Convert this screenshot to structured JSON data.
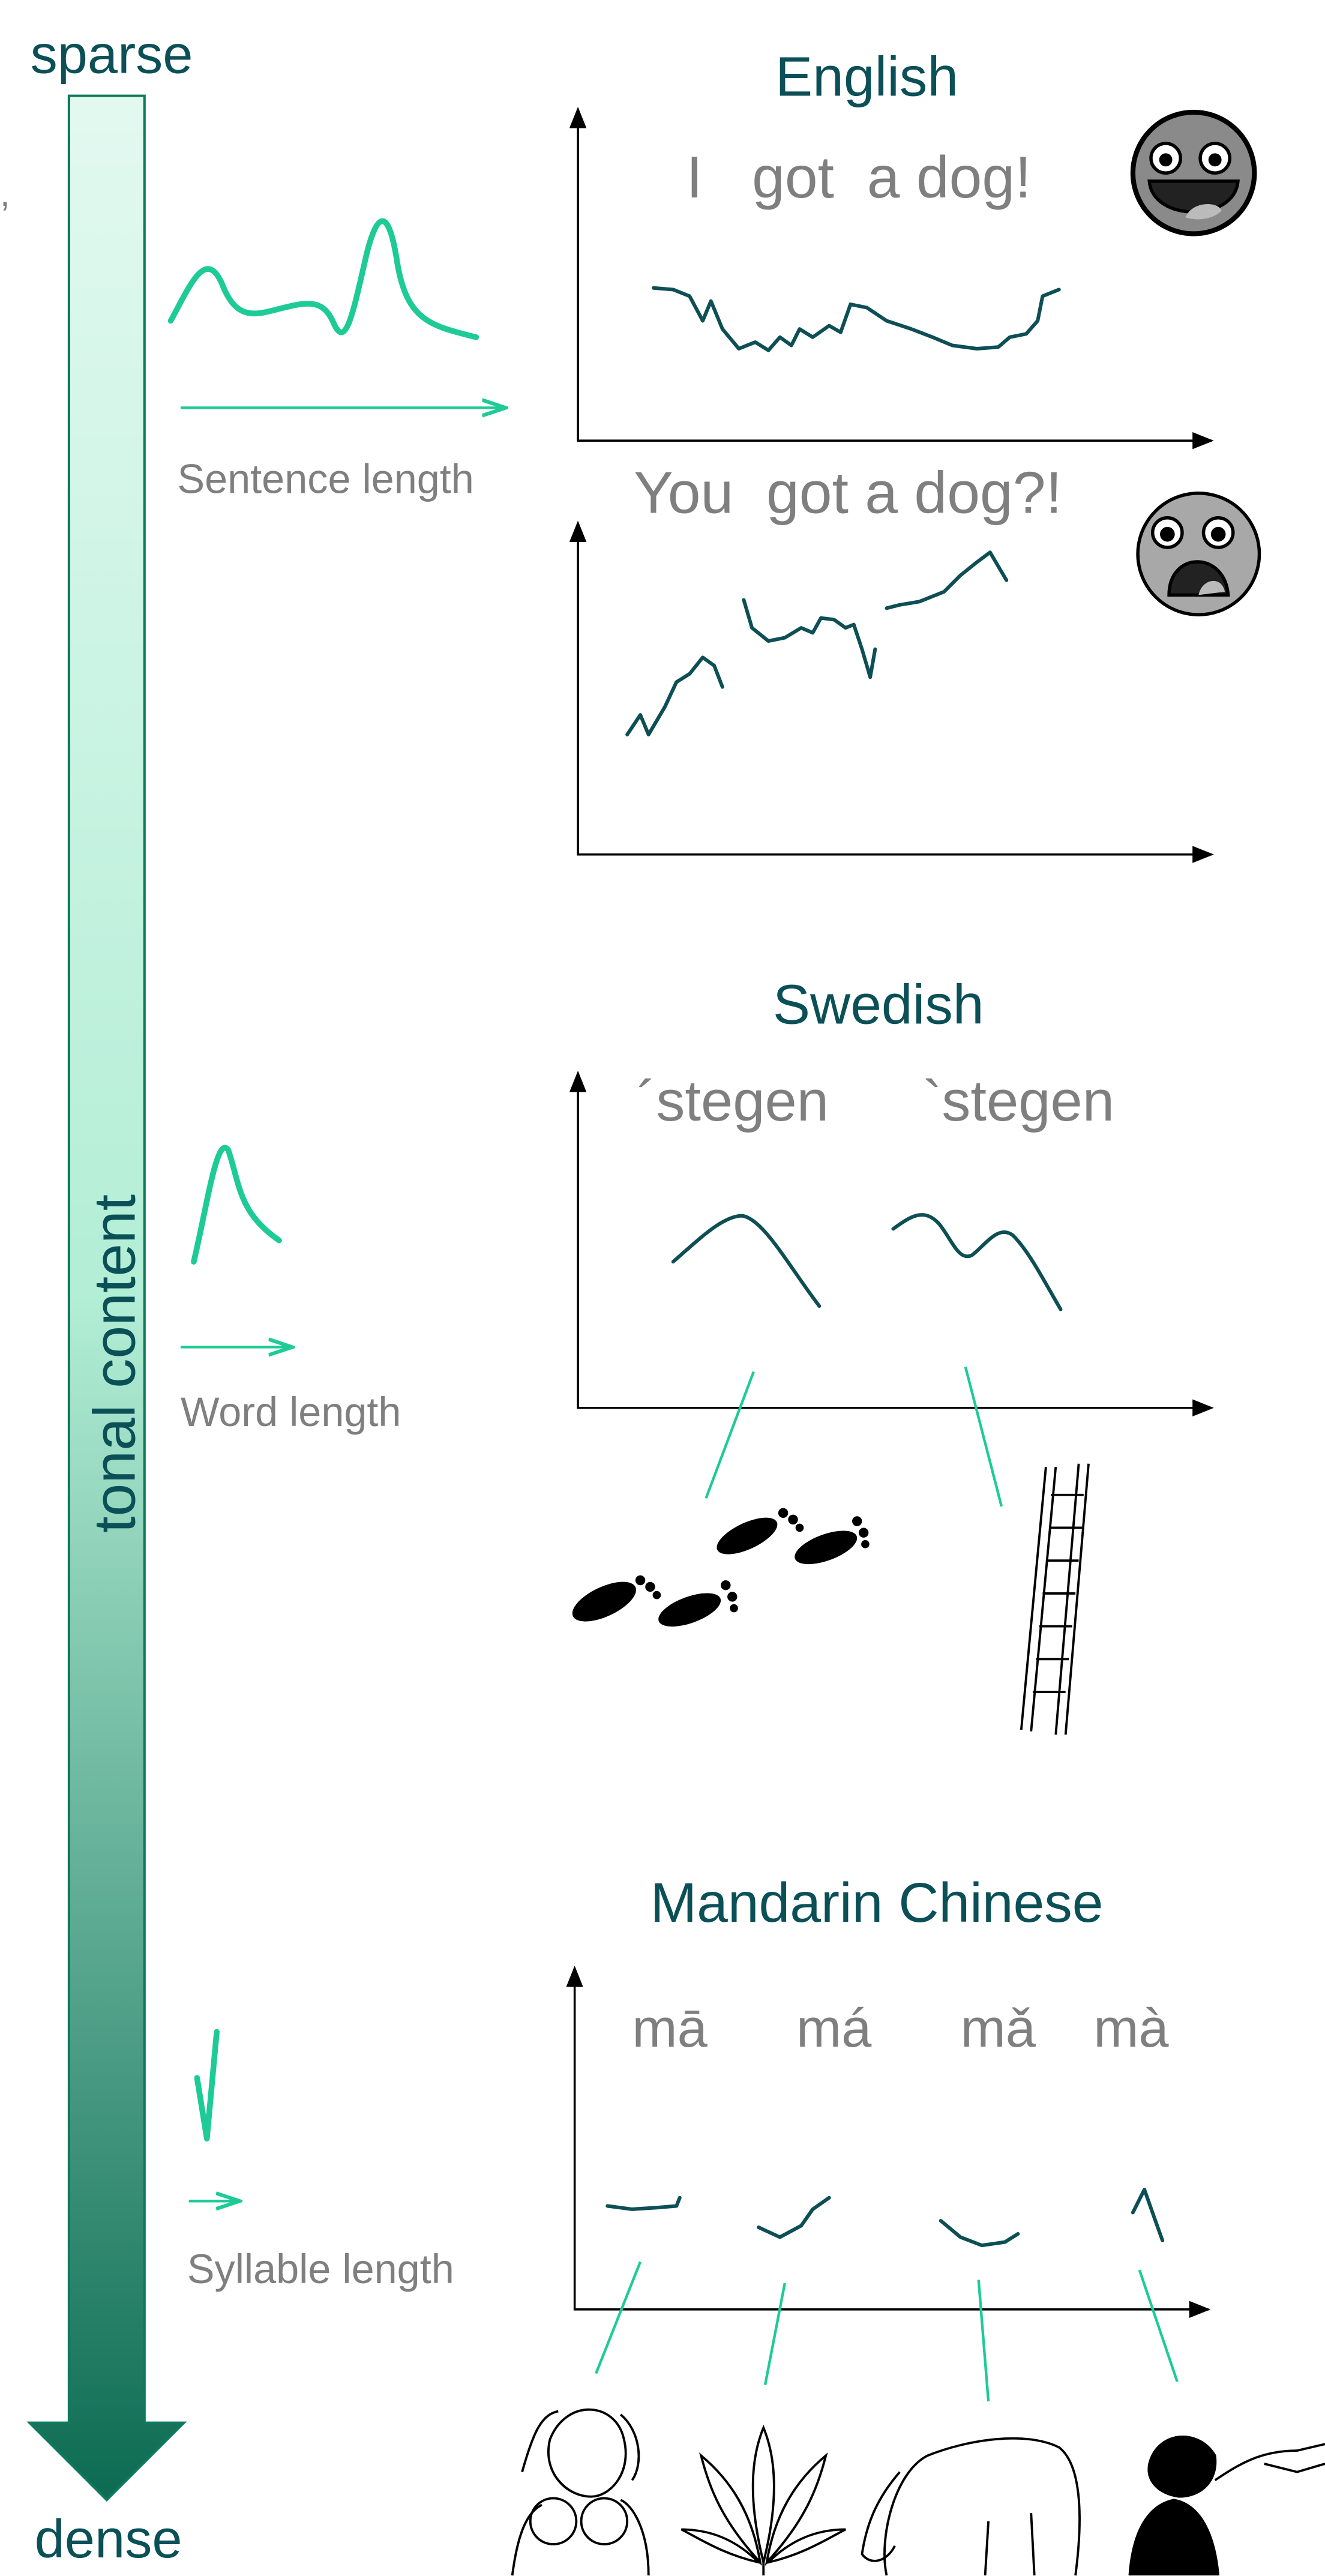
{
  "left_axis": {
    "top_label": "sparse",
    "bottom_label": "dense",
    "label": "tonal content",
    "fragment": ","
  },
  "scales": [
    {
      "label": "Sentence length"
    },
    {
      "label": "Word length"
    },
    {
      "label": "Syllable length"
    }
  ],
  "panels": [
    {
      "title": "English",
      "examples": [
        "I   got  a dog!",
        "You  got a dog?!"
      ]
    },
    {
      "title": "Swedish",
      "words": [
        "´stegen",
        "`stegen"
      ]
    },
    {
      "title": "Mandarin Chinese",
      "syllables": [
        "mā",
        "má",
        "mǎ",
        "mà"
      ]
    }
  ]
}
